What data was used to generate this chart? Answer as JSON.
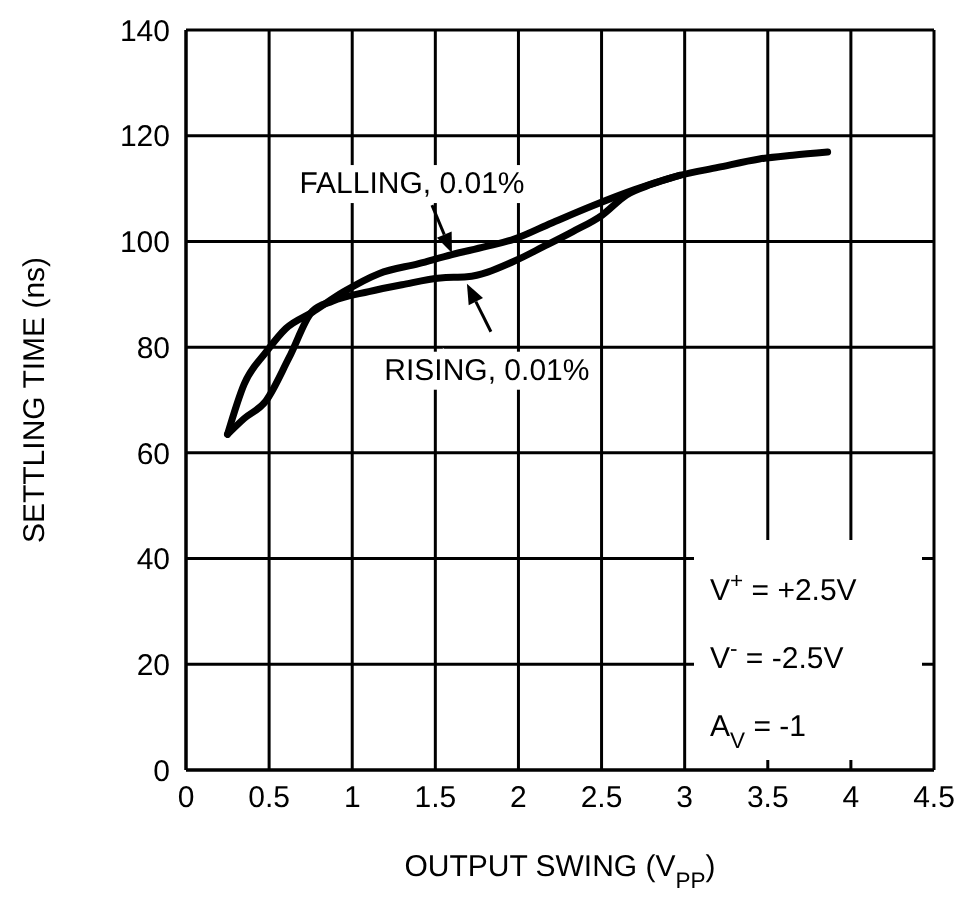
{
  "chart_data": {
    "type": "line",
    "xlabel": "OUTPUT SWING (V$_{PP}$)",
    "ylabel": "SETTLING TIME (ns)",
    "xlim": [
      0,
      4.5
    ],
    "xticks": [
      0,
      0.5,
      1,
      1.5,
      2,
      2.5,
      3,
      3.5,
      4,
      4.5
    ],
    "ylim": [
      0,
      140
    ],
    "yticks": [
      0,
      20,
      40,
      60,
      80,
      100,
      120,
      140
    ],
    "grid": true,
    "legend": false,
    "marker": "none",
    "line_style": "solid",
    "series": [
      {
        "color": "#000000",
        "x": [
          0.25,
          0.35,
          0.48,
          0.6,
          0.76,
          0.95,
          1.16,
          1.4,
          1.6,
          1.8,
          1.97,
          2.2,
          2.45,
          2.7,
          2.97,
          3.2,
          3.45,
          3.65,
          3.86
        ],
        "values": [
          63.5,
          73,
          79,
          83.5,
          86.6,
          90.5,
          93.9,
          95.8,
          97.5,
          99,
          100.4,
          103.5,
          106.8,
          109.8,
          112.5,
          114,
          115.6,
          116.3,
          116.9
        ]
      },
      {
        "color": "#000000",
        "x": [
          0.25,
          0.35,
          0.48,
          0.62,
          0.76,
          0.88,
          1.1,
          1.3,
          1.53,
          1.69,
          1.97,
          2.15,
          2.33,
          2.5,
          2.65,
          2.8,
          2.97
        ],
        "values": [
          63.5,
          66.5,
          69.8,
          78,
          86.8,
          88.7,
          90.5,
          91.8,
          93.1,
          93.3,
          96.2,
          99,
          101.9,
          104.9,
          108.8,
          110.8,
          112.5
        ]
      }
    ],
    "annotations": [
      {
        "text": "FALLING, 0.01%",
        "x": 1.6,
        "y": 97.8
      },
      {
        "text": "RISING, 0.01%",
        "x": 1.69,
        "y": 92
      },
      "V$^{+}$ = +2.5V",
      "V$^{-}$ = -2.5V",
      "A$_{V}$ = -1"
    ]
  }
}
